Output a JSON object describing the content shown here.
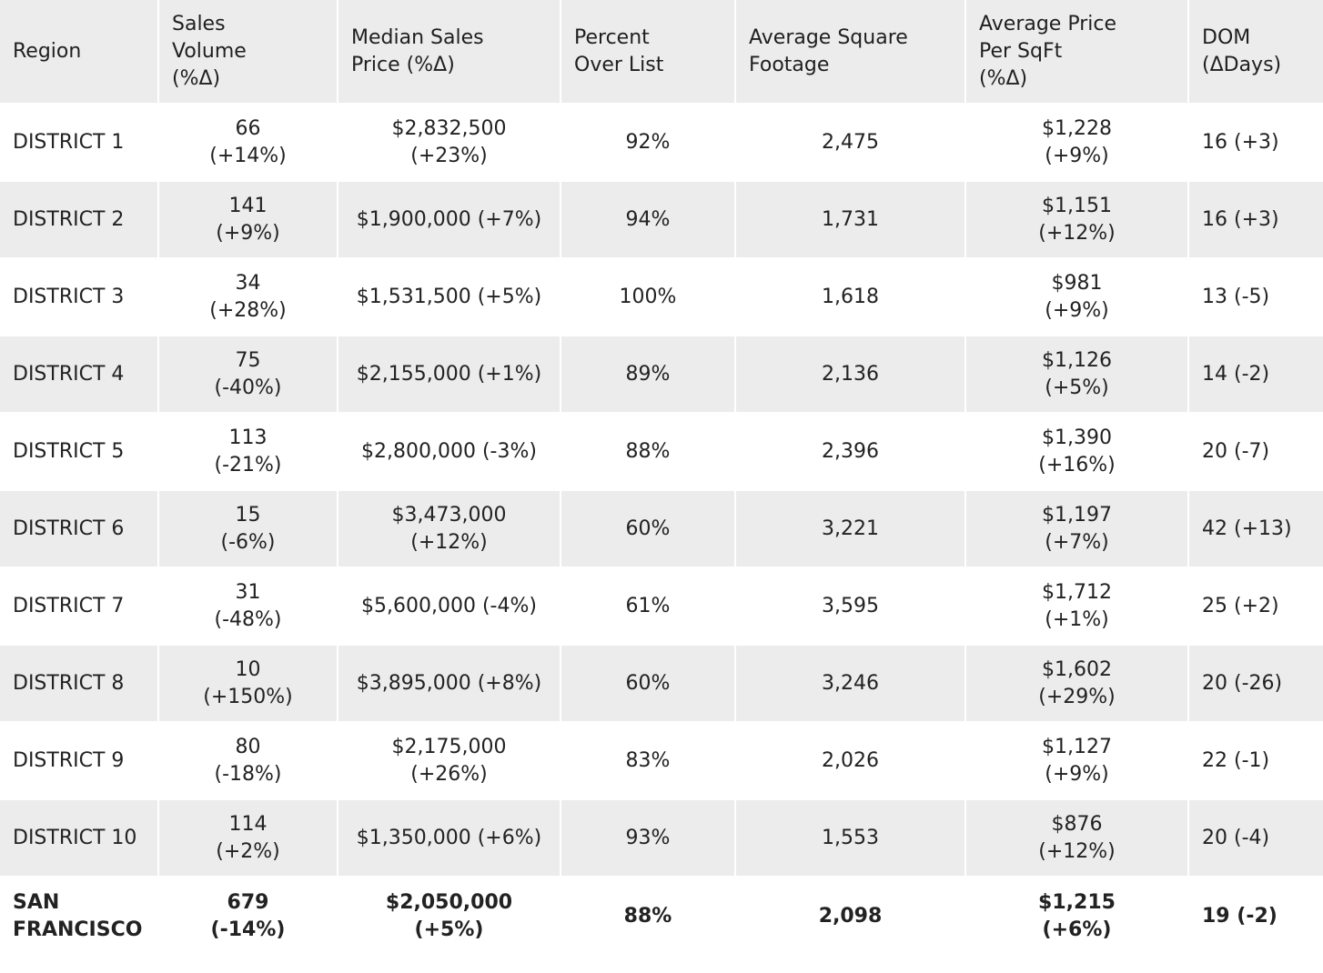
{
  "headers": {
    "region": "Region",
    "sales_volume": [
      "Sales",
      "Volume",
      "(%Δ)"
    ],
    "median_price": [
      "Median Sales",
      "Price (%Δ)"
    ],
    "percent_over": [
      "Percent",
      "Over List"
    ],
    "avg_sqft": [
      "Average Square",
      "Footage"
    ],
    "avg_ppsf": [
      "Average Price",
      "Per SqFt",
      "(%Δ)"
    ],
    "dom": [
      "DOM",
      "(ΔDays)"
    ]
  },
  "rows": [
    {
      "region": "DISTRICT 1",
      "vol": "66",
      "vol_chg": "(+14%)",
      "median": "$2,832,500 (+23%)",
      "over": "92%",
      "sqft": "2,475",
      "ppsf": "$1,228",
      "ppsf_chg": "(+9%)",
      "dom": "16 (+3)"
    },
    {
      "region": "DISTRICT 2",
      "vol": "141",
      "vol_chg": "(+9%)",
      "median": "$1,900,000 (+7%)",
      "over": "94%",
      "sqft": "1,731",
      "ppsf": "$1,151",
      "ppsf_chg": "(+12%)",
      "dom": "16 (+3)"
    },
    {
      "region": "DISTRICT 3",
      "vol": "34",
      "vol_chg": "(+28%)",
      "median": "$1,531,500 (+5%)",
      "over": "100%",
      "sqft": "1,618",
      "ppsf": "$981",
      "ppsf_chg": "(+9%)",
      "dom": "13 (-5)"
    },
    {
      "region": "DISTRICT 4",
      "vol": "75",
      "vol_chg": "(-40%)",
      "median": "$2,155,000 (+1%)",
      "over": "89%",
      "sqft": "2,136",
      "ppsf": "$1,126",
      "ppsf_chg": "(+5%)",
      "dom": "14 (-2)"
    },
    {
      "region": "DISTRICT 5",
      "vol": "113",
      "vol_chg": "(-21%)",
      "median": "$2,800,000 (-3%)",
      "over": "88%",
      "sqft": "2,396",
      "ppsf": "$1,390",
      "ppsf_chg": "(+16%)",
      "dom": "20 (-7)"
    },
    {
      "region": "DISTRICT 6",
      "vol": "15",
      "vol_chg": "(-6%)",
      "median": "$3,473,000 (+12%)",
      "over": "60%",
      "sqft": "3,221",
      "ppsf": "$1,197",
      "ppsf_chg": "(+7%)",
      "dom": "42 (+13)"
    },
    {
      "region": "DISTRICT 7",
      "vol": "31",
      "vol_chg": "(-48%)",
      "median": "$5,600,000 (-4%)",
      "over": "61%",
      "sqft": "3,595",
      "ppsf": "$1,712",
      "ppsf_chg": "(+1%)",
      "dom": "25 (+2)"
    },
    {
      "region": "DISTRICT 8",
      "vol": "10",
      "vol_chg": "(+150%)",
      "median": "$3,895,000 (+8%)",
      "over": "60%",
      "sqft": "3,246",
      "ppsf": "$1,602",
      "ppsf_chg": "(+29%)",
      "dom": "20 (-26)"
    },
    {
      "region": "DISTRICT 9",
      "vol": "80",
      "vol_chg": "(-18%)",
      "median": "$2,175,000 (+26%)",
      "over": "83%",
      "sqft": "2,026",
      "ppsf": "$1,127",
      "ppsf_chg": "(+9%)",
      "dom": "22 (-1)"
    },
    {
      "region": "DISTRICT 10",
      "vol": "114",
      "vol_chg": "(+2%)",
      "median": "$1,350,000 (+6%)",
      "over": "93%",
      "sqft": "1,553",
      "ppsf": "$876",
      "ppsf_chg": "(+12%)",
      "dom": "20 (-4)"
    }
  ],
  "total": {
    "region": [
      "SAN",
      "FRANCISCO"
    ],
    "vol": "679",
    "vol_chg": "(-14%)",
    "median": "$2,050,000 (+5%)",
    "over": "88%",
    "sqft": "2,098",
    "ppsf": "$1,215",
    "ppsf_chg": "(+6%)",
    "dom": "19 (-2)"
  }
}
